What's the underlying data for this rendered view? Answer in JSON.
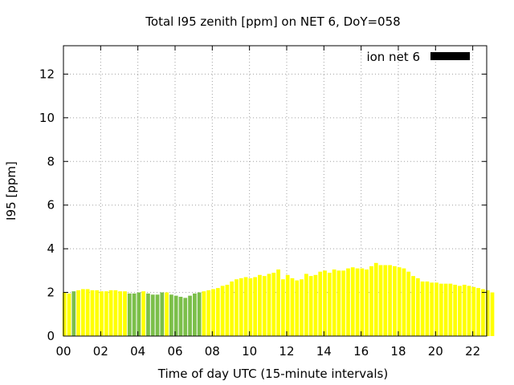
{
  "chart_data": {
    "type": "bar",
    "title": "Total I95 zenith [ppm] on NET 6, DoY=058",
    "xlabel": "Time of day UTC (15-minute intervals)",
    "ylabel": "I95 [ppm]",
    "ylim": [
      0,
      13.3
    ],
    "yticks": [
      0,
      2,
      4,
      6,
      8,
      10,
      12
    ],
    "xlim": [
      0,
      22.75
    ],
    "xticks": [
      0,
      2,
      4,
      6,
      8,
      10,
      12,
      14,
      16,
      18,
      20,
      22
    ],
    "xtick_labels": [
      "00",
      "02",
      "04",
      "06",
      "08",
      "10",
      "12",
      "14",
      "16",
      "18",
      "20",
      "22"
    ],
    "grid": true,
    "legend": {
      "position": "top-right",
      "entries": [
        {
          "label": "ion net 6",
          "color": "#000000"
        }
      ]
    },
    "colors": {
      "high": "#ffff00",
      "low": "#7bbf4a"
    },
    "interval_hours": 0.25,
    "values": [
      2.0,
      1.95,
      2.05,
      2.1,
      2.15,
      2.15,
      2.1,
      2.1,
      2.05,
      2.05,
      2.1,
      2.1,
      2.05,
      2.05,
      1.95,
      1.95,
      2.0,
      2.05,
      1.95,
      1.9,
      1.9,
      2.0,
      2.0,
      1.9,
      1.85,
      1.8,
      1.75,
      1.85,
      1.95,
      2.0,
      2.05,
      2.1,
      2.15,
      2.2,
      2.3,
      2.35,
      2.5,
      2.6,
      2.65,
      2.7,
      2.65,
      2.7,
      2.8,
      2.75,
      2.85,
      2.9,
      3.05,
      2.6,
      2.8,
      2.65,
      2.55,
      2.6,
      2.85,
      2.75,
      2.8,
      2.95,
      3.0,
      2.9,
      3.05,
      3.0,
      3.0,
      3.1,
      3.15,
      3.1,
      3.1,
      3.05,
      3.2,
      3.35,
      3.25,
      3.25,
      3.25,
      3.2,
      3.15,
      3.1,
      2.95,
      2.75,
      2.65,
      2.5,
      2.5,
      2.45,
      2.45,
      2.4,
      2.4,
      2.4,
      2.35,
      2.3,
      2.35,
      2.3,
      2.25,
      2.2,
      2.15,
      2.1,
      2.0
    ],
    "low_indices": [
      2,
      14,
      15,
      16,
      18,
      19,
      20,
      21,
      23,
      24,
      25,
      26,
      27,
      28,
      29
    ]
  }
}
